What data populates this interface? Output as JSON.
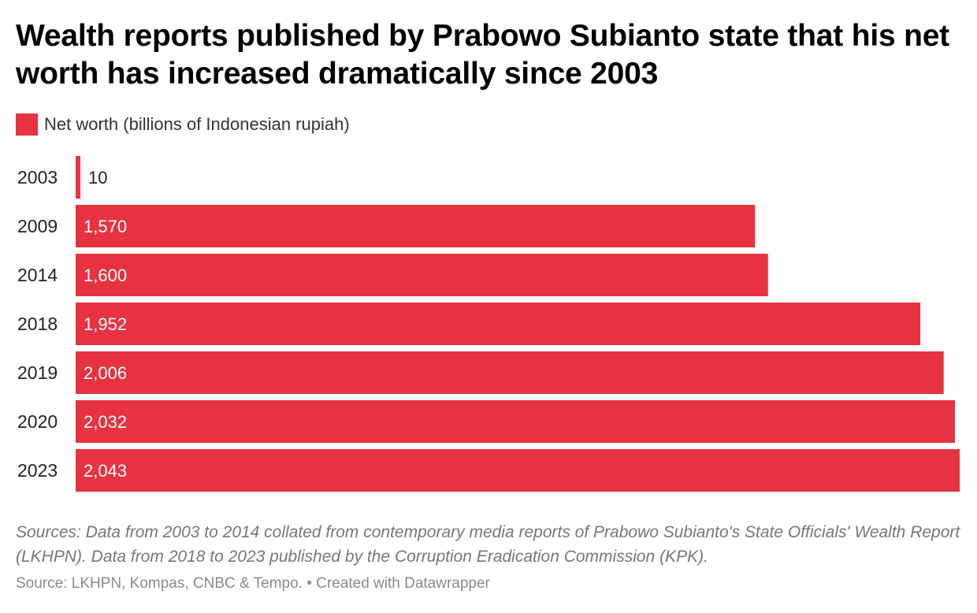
{
  "title": "Wealth reports published by Prabowo Subianto state that his net worth has increased dramatically since 2003",
  "legend": {
    "label": "Net worth (billions of Indonesian rupiah)",
    "color": "#e63241"
  },
  "chart_data": {
    "type": "bar",
    "orientation": "horizontal",
    "title": "Wealth reports published by Prabowo Subianto state that his net worth has increased dramatically since 2003",
    "categories": [
      "2003",
      "2009",
      "2014",
      "2018",
      "2019",
      "2020",
      "2023"
    ],
    "series": [
      {
        "name": "Net worth (billions of Indonesian rupiah)",
        "values": [
          10,
          1570,
          1600,
          1952,
          2006,
          2032,
          2043
        ],
        "labels": [
          "10",
          "1,570",
          "1,600",
          "1,952",
          "2,006",
          "2,032",
          "2,043"
        ],
        "color": "#e63241"
      }
    ],
    "xlim": [
      0,
      2043
    ],
    "grid": false,
    "legend_position": "top-left"
  },
  "notes": "Sources: Data from 2003 to 2014 collated from contemporary media reports of Prabowo Subianto's State Officials' Wealth Report (LKHPN). Data from 2018 to 2023 published by the Corruption Eradication Commission (KPK).",
  "footer": "Source: LKHPN, Kompas, CNBC & Tempo. • Created with Datawrapper"
}
